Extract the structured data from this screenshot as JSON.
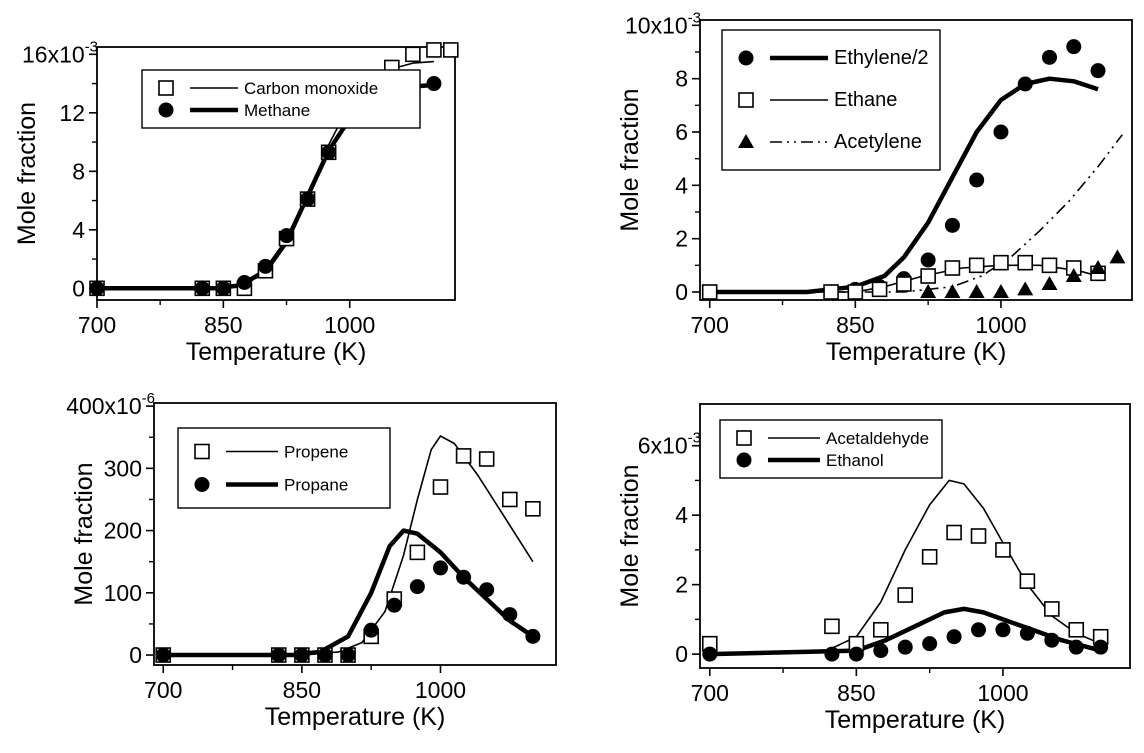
{
  "chart_data": [
    {
      "type": "scatter",
      "xlabel": "Temperature (K)",
      "ylabel": "Mole fraction",
      "xlim": [
        700,
        1125
      ],
      "xticks": [
        700,
        850,
        1000
      ],
      "xtick_labels": [
        "700",
        "850",
        "1000"
      ],
      "ylim": [
        -0.0008,
        0.0165
      ],
      "yticks": [
        0,
        0.004,
        0.008,
        0.012,
        0.016
      ],
      "ytick_labels": [
        "0",
        "4",
        "8",
        "12",
        "16x10"
      ],
      "y_exponent": "-3",
      "legend_placement": "top-left",
      "series": [
        {
          "name": "Carbon monoxide",
          "marker": "open-square",
          "line": "thin",
          "points": [
            [
              700,
              0
            ],
            [
              825,
              0
            ],
            [
              850,
              0
            ],
            [
              875,
              0
            ],
            [
              900,
              0.0012
            ],
            [
              925,
              0.0034
            ],
            [
              950,
              0.0061
            ],
            [
              975,
              0.0093
            ],
            [
              1000,
              0.0127
            ],
            [
              1025,
              0.0139
            ],
            [
              1050,
              0.0151
            ],
            [
              1075,
              0.016
            ],
            [
              1100,
              0.0163
            ],
            [
              1120,
              0.0163
            ]
          ],
          "curve": [
            [
              700,
              0
            ],
            [
              840,
              0
            ],
            [
              870,
              0.0002
            ],
            [
              900,
              0.001
            ],
            [
              925,
              0.003
            ],
            [
              950,
              0.0062
            ],
            [
              975,
              0.0098
            ],
            [
              1000,
              0.0126
            ],
            [
              1025,
              0.0143
            ],
            [
              1050,
              0.015
            ],
            [
              1075,
              0.0154
            ],
            [
              1100,
              0.0155
            ]
          ]
        },
        {
          "name": "Methane",
          "marker": "filled-circle",
          "line": "thick",
          "points": [
            [
              700,
              0
            ],
            [
              825,
              0
            ],
            [
              850,
              0
            ],
            [
              875,
              0.0004
            ],
            [
              900,
              0.0015
            ],
            [
              925,
              0.0036
            ],
            [
              950,
              0.0061
            ],
            [
              975,
              0.0093
            ],
            [
              1000,
              0.0115
            ],
            [
              1025,
              0.0126
            ],
            [
              1050,
              0.0122
            ],
            [
              1075,
              0.0121
            ],
            [
              1100,
              0.014
            ]
          ],
          "curve": [
            [
              700,
              0
            ],
            [
              840,
              0
            ],
            [
              870,
              0.0002
            ],
            [
              900,
              0.0012
            ],
            [
              925,
              0.0032
            ],
            [
              950,
              0.0063
            ],
            [
              975,
              0.0094
            ],
            [
              1000,
              0.0116
            ],
            [
              1025,
              0.0129
            ],
            [
              1050,
              0.0135
            ],
            [
              1075,
              0.0138
            ],
            [
              1100,
              0.0139
            ]
          ]
        }
      ]
    },
    {
      "type": "scatter",
      "xlabel": "Temperature (K)",
      "ylabel": "Mole fraction",
      "xlim": [
        690,
        1135
      ],
      "xticks": [
        700,
        850,
        1000
      ],
      "xtick_labels": [
        "700",
        "850",
        "1000"
      ],
      "ylim": [
        -0.0003,
        0.0102
      ],
      "yticks": [
        0,
        0.002,
        0.004,
        0.006,
        0.008,
        0.01
      ],
      "ytick_labels": [
        "0",
        "2",
        "4",
        "6",
        "8",
        "10x10"
      ],
      "y_exponent": "-3",
      "legend_placement": "top-left",
      "series": [
        {
          "name": "Ethylene/2",
          "marker": "filled-circle",
          "line": "thick",
          "points": [
            [
              700,
              0
            ],
            [
              825,
              0
            ],
            [
              850,
              0.0001
            ],
            [
              875,
              0.0002
            ],
            [
              900,
              0.0005
            ],
            [
              925,
              0.0012
            ],
            [
              950,
              0.0025
            ],
            [
              975,
              0.0042
            ],
            [
              1000,
              0.006
            ],
            [
              1025,
              0.0078
            ],
            [
              1050,
              0.0088
            ],
            [
              1075,
              0.0092
            ],
            [
              1100,
              0.0083
            ]
          ],
          "curve": [
            [
              700,
              0
            ],
            [
              800,
              0
            ],
            [
              850,
              0.0002
            ],
            [
              880,
              0.0006
            ],
            [
              900,
              0.0013
            ],
            [
              925,
              0.0026
            ],
            [
              950,
              0.0043
            ],
            [
              975,
              0.006
            ],
            [
              1000,
              0.0072
            ],
            [
              1025,
              0.0078
            ],
            [
              1050,
              0.008
            ],
            [
              1075,
              0.0079
            ],
            [
              1100,
              0.0076
            ]
          ]
        },
        {
          "name": "Ethane",
          "marker": "open-square",
          "line": "thin",
          "points": [
            [
              700,
              0
            ],
            [
              825,
              0
            ],
            [
              850,
              0
            ],
            [
              875,
              0.0001
            ],
            [
              900,
              0.0003
            ],
            [
              925,
              0.0006
            ],
            [
              950,
              0.0009
            ],
            [
              975,
              0.001
            ],
            [
              1000,
              0.0011
            ],
            [
              1025,
              0.0011
            ],
            [
              1050,
              0.001
            ],
            [
              1075,
              0.0009
            ],
            [
              1100,
              0.0007
            ]
          ],
          "curve": [
            [
              700,
              0
            ],
            [
              850,
              0
            ],
            [
              880,
              0.0002
            ],
            [
              920,
              0.0006
            ],
            [
              960,
              0.0009
            ],
            [
              1000,
              0.001
            ],
            [
              1040,
              0.001
            ],
            [
              1080,
              0.0008
            ],
            [
              1100,
              0.0006
            ]
          ]
        },
        {
          "name": "Acetylene",
          "marker": "filled-triangle",
          "line": "dash-dot",
          "points": [
            [
              925,
              0
            ],
            [
              950,
              0
            ],
            [
              975,
              0
            ],
            [
              1000,
              0
            ],
            [
              1025,
              0.0001
            ],
            [
              1050,
              0.0003
            ],
            [
              1075,
              0.0006
            ],
            [
              1100,
              0.0009
            ],
            [
              1120,
              0.0013
            ]
          ],
          "curve": [
            [
              700,
              0
            ],
            [
              900,
              0
            ],
            [
              950,
              0.0002
            ],
            [
              980,
              0.0006
            ],
            [
              1010,
              0.0013
            ],
            [
              1040,
              0.0023
            ],
            [
              1070,
              0.0034
            ],
            [
              1100,
              0.0047
            ],
            [
              1125,
              0.0059
            ]
          ]
        }
      ]
    },
    {
      "type": "scatter",
      "xlabel": "Temperature (K)",
      "ylabel": "Mole fraction",
      "xlim": [
        690,
        1125
      ],
      "xticks": [
        700,
        850,
        1000
      ],
      "xtick_labels": [
        "700",
        "850",
        "1000"
      ],
      "ylim": [
        -16,
        405
      ],
      "yticks": [
        0,
        100,
        200,
        300,
        400
      ],
      "ytick_labels": [
        "0",
        "100",
        "200",
        "300",
        "400x10"
      ],
      "y_exponent": "-6",
      "legend_placement": "top-left",
      "series": [
        {
          "name": "Propene",
          "marker": "open-square",
          "line": "thin",
          "points": [
            [
              700,
              0
            ],
            [
              825,
              0
            ],
            [
              850,
              0
            ],
            [
              875,
              0
            ],
            [
              900,
              0
            ],
            [
              925,
              30
            ],
            [
              950,
              90
            ],
            [
              975,
              165
            ],
            [
              1000,
              270
            ],
            [
              1025,
              320
            ],
            [
              1050,
              315
            ],
            [
              1075,
              250
            ],
            [
              1100,
              235
            ]
          ],
          "curve": [
            [
              700,
              0
            ],
            [
              850,
              0
            ],
            [
              890,
              5
            ],
            [
              915,
              20
            ],
            [
              940,
              70
            ],
            [
              960,
              160
            ],
            [
              975,
              250
            ],
            [
              990,
              330
            ],
            [
              1000,
              352
            ],
            [
              1015,
              340
            ],
            [
              1040,
              290
            ],
            [
              1070,
              220
            ],
            [
              1100,
              150
            ]
          ]
        },
        {
          "name": "Propane",
          "marker": "filled-circle",
          "line": "thick",
          "points": [
            [
              700,
              0
            ],
            [
              825,
              0
            ],
            [
              850,
              0
            ],
            [
              875,
              0
            ],
            [
              900,
              0
            ],
            [
              925,
              40
            ],
            [
              950,
              80
            ],
            [
              975,
              110
            ],
            [
              1000,
              140
            ],
            [
              1025,
              125
            ],
            [
              1050,
              105
            ],
            [
              1075,
              65
            ],
            [
              1100,
              30
            ]
          ],
          "curve": [
            [
              700,
              0
            ],
            [
              840,
              0
            ],
            [
              870,
              5
            ],
            [
              900,
              30
            ],
            [
              925,
              100
            ],
            [
              945,
              175
            ],
            [
              960,
              200
            ],
            [
              975,
              195
            ],
            [
              1000,
              165
            ],
            [
              1025,
              125
            ],
            [
              1050,
              90
            ],
            [
              1075,
              55
            ],
            [
              1100,
              30
            ]
          ]
        }
      ]
    },
    {
      "type": "scatter",
      "xlabel": "Temperature (K)",
      "ylabel": "Mole fraction",
      "xlim": [
        690,
        1130
      ],
      "xticks": [
        700,
        850,
        1000
      ],
      "xtick_labels": [
        "700",
        "850",
        "1000"
      ],
      "ylim": [
        -0.0004,
        0.0072
      ],
      "yticks": [
        0,
        0.002,
        0.004,
        0.006
      ],
      "ytick_labels": [
        "0",
        "2",
        "4",
        "6x10"
      ],
      "y_exponent": "-3",
      "legend_placement": "top-left",
      "series": [
        {
          "name": "Acetaldehyde",
          "marker": "open-square",
          "line": "thin",
          "points": [
            [
              700,
              0.0003
            ],
            [
              825,
              0.0008
            ],
            [
              850,
              0.0003
            ],
            [
              875,
              0.0007
            ],
            [
              900,
              0.0017
            ],
            [
              925,
              0.0028
            ],
            [
              950,
              0.0035
            ],
            [
              975,
              0.0034
            ],
            [
              1000,
              0.003
            ],
            [
              1025,
              0.0021
            ],
            [
              1050,
              0.0013
            ],
            [
              1075,
              0.0007
            ],
            [
              1100,
              0.0005
            ]
          ],
          "curve": [
            [
              700,
              0
            ],
            [
              820,
              0.0001
            ],
            [
              850,
              0.0005
            ],
            [
              875,
              0.0015
            ],
            [
              900,
              0.003
            ],
            [
              925,
              0.0043
            ],
            [
              945,
              0.005
            ],
            [
              960,
              0.0049
            ],
            [
              980,
              0.0042
            ],
            [
              1000,
              0.0032
            ],
            [
              1025,
              0.002
            ],
            [
              1050,
              0.0011
            ],
            [
              1075,
              0.0006
            ],
            [
              1100,
              0.0003
            ]
          ]
        },
        {
          "name": "Ethanol",
          "marker": "filled-circle",
          "line": "thick",
          "points": [
            [
              700,
              0
            ],
            [
              825,
              0
            ],
            [
              850,
              0
            ],
            [
              875,
              0.0001
            ],
            [
              900,
              0.0002
            ],
            [
              925,
              0.0003
            ],
            [
              950,
              0.0005
            ],
            [
              975,
              0.0007
            ],
            [
              1000,
              0.0007
            ],
            [
              1025,
              0.0006
            ],
            [
              1050,
              0.0004
            ],
            [
              1075,
              0.0002
            ],
            [
              1100,
              0.0002
            ]
          ],
          "curve": [
            [
              700,
              0
            ],
            [
              850,
              0.0001
            ],
            [
              880,
              0.0004
            ],
            [
              910,
              0.0008
            ],
            [
              940,
              0.0012
            ],
            [
              960,
              0.0013
            ],
            [
              980,
              0.0012
            ],
            [
              1000,
              0.001
            ],
            [
              1030,
              0.0007
            ],
            [
              1060,
              0.0004
            ],
            [
              1100,
              0.0001
            ]
          ]
        }
      ]
    }
  ]
}
